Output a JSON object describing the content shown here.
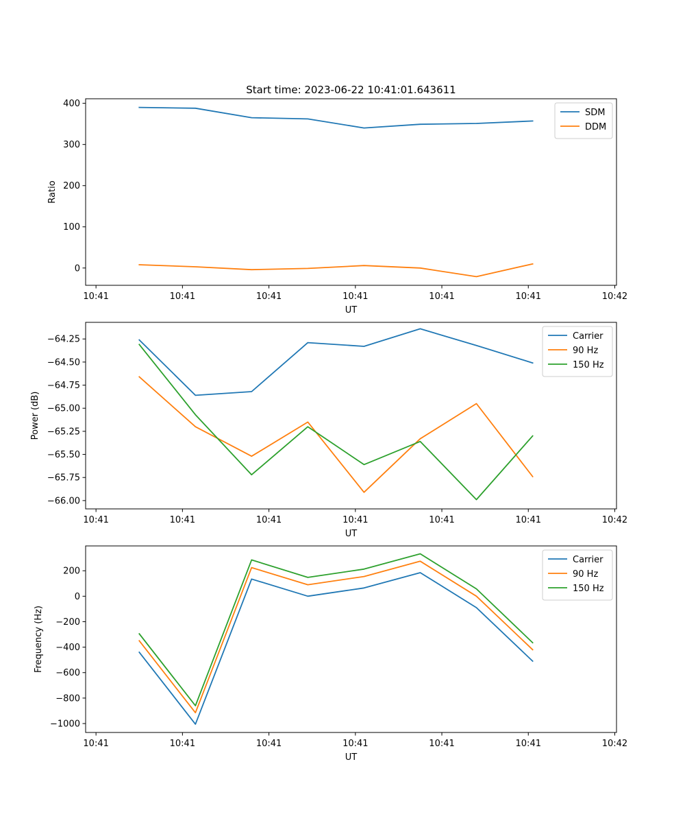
{
  "figure_title": "Start time: 2023-06-22 10:41:01.643611",
  "chart_data": [
    {
      "type": "line",
      "title": "Start time: 2023-06-22 10:41:01.643611",
      "xlabel": "UT",
      "ylabel": "Ratio",
      "x_tick_labels": [
        "10:41",
        "10:41",
        "10:41",
        "10:41",
        "10:41",
        "10:41",
        "10:42"
      ],
      "x_points": [
        0.5,
        1.15,
        1.8,
        2.45,
        3.1,
        3.75,
        4.4,
        5.05
      ],
      "xlim": [
        -0.12,
        6.02
      ],
      "ylim": [
        -42,
        411
      ],
      "yticks": [
        0,
        100,
        200,
        300,
        400
      ],
      "ytick_labels": [
        "0",
        "100",
        "200",
        "300",
        "400"
      ],
      "legend_position": "upper right",
      "series": [
        {
          "name": "SDM",
          "color": "#1f77b4",
          "values": [
            390,
            388,
            365,
            362,
            340,
            349,
            351,
            357
          ]
        },
        {
          "name": "DDM",
          "color": "#ff7f0e",
          "values": [
            8,
            3,
            -4,
            -1,
            6,
            0,
            -21,
            10
          ]
        }
      ]
    },
    {
      "type": "line",
      "title": "",
      "xlabel": "UT",
      "ylabel": "Power (dB)",
      "x_tick_labels": [
        "10:41",
        "10:41",
        "10:41",
        "10:41",
        "10:41",
        "10:41",
        "10:42"
      ],
      "x_points": [
        0.5,
        1.15,
        1.8,
        2.45,
        3.1,
        3.75,
        4.4,
        5.05
      ],
      "xlim": [
        -0.12,
        6.02
      ],
      "ylim": [
        -66.09,
        -64.07
      ],
      "yticks": [
        -64.25,
        -64.5,
        -64.75,
        -65.0,
        -65.25,
        -65.5,
        -65.75,
        -66.0
      ],
      "ytick_labels": [
        "−64.25",
        "−64.50",
        "−64.75",
        "−65.00",
        "−65.25",
        "−65.50",
        "−65.75",
        "−66.00"
      ],
      "legend_position": "upper right",
      "series": [
        {
          "name": "Carrier",
          "color": "#1f77b4",
          "values": [
            -64.26,
            -64.86,
            -64.82,
            -64.29,
            -64.33,
            -64.14,
            -64.32,
            -64.51
          ]
        },
        {
          "name": "90 Hz",
          "color": "#ff7f0e",
          "values": [
            -64.66,
            -65.2,
            -65.52,
            -65.15,
            -65.91,
            -65.33,
            -64.95,
            -65.74
          ]
        },
        {
          "name": "150 Hz",
          "color": "#2ca02c",
          "values": [
            -64.31,
            -65.07,
            -65.72,
            -65.2,
            -65.61,
            -65.36,
            -65.99,
            -65.3
          ]
        }
      ]
    },
    {
      "type": "line",
      "title": "",
      "xlabel": "UT",
      "ylabel": "Frequency (Hz)",
      "x_tick_labels": [
        "10:41",
        "10:41",
        "10:41",
        "10:41",
        "10:41",
        "10:41",
        "10:42"
      ],
      "x_points": [
        0.5,
        1.15,
        1.8,
        2.45,
        3.1,
        3.75,
        4.4,
        5.05
      ],
      "xlim": [
        -0.12,
        6.02
      ],
      "ylim": [
        -1070,
        395
      ],
      "yticks": [
        200,
        0,
        -200,
        -400,
        -600,
        -800,
        -1000
      ],
      "ytick_labels": [
        "200",
        "0",
        "−200",
        "−400",
        "−600",
        "−800",
        "−1000"
      ],
      "legend_position": "upper right",
      "series": [
        {
          "name": "Carrier",
          "color": "#1f77b4",
          "values": [
            -440,
            -1005,
            135,
            0,
            65,
            185,
            -90,
            -510
          ]
        },
        {
          "name": "90 Hz",
          "color": "#ff7f0e",
          "values": [
            -350,
            -915,
            225,
            90,
            155,
            275,
            0,
            -420
          ]
        },
        {
          "name": "150 Hz",
          "color": "#2ca02c",
          "values": [
            -295,
            -860,
            285,
            148,
            213,
            333,
            58,
            -365
          ]
        }
      ]
    }
  ]
}
